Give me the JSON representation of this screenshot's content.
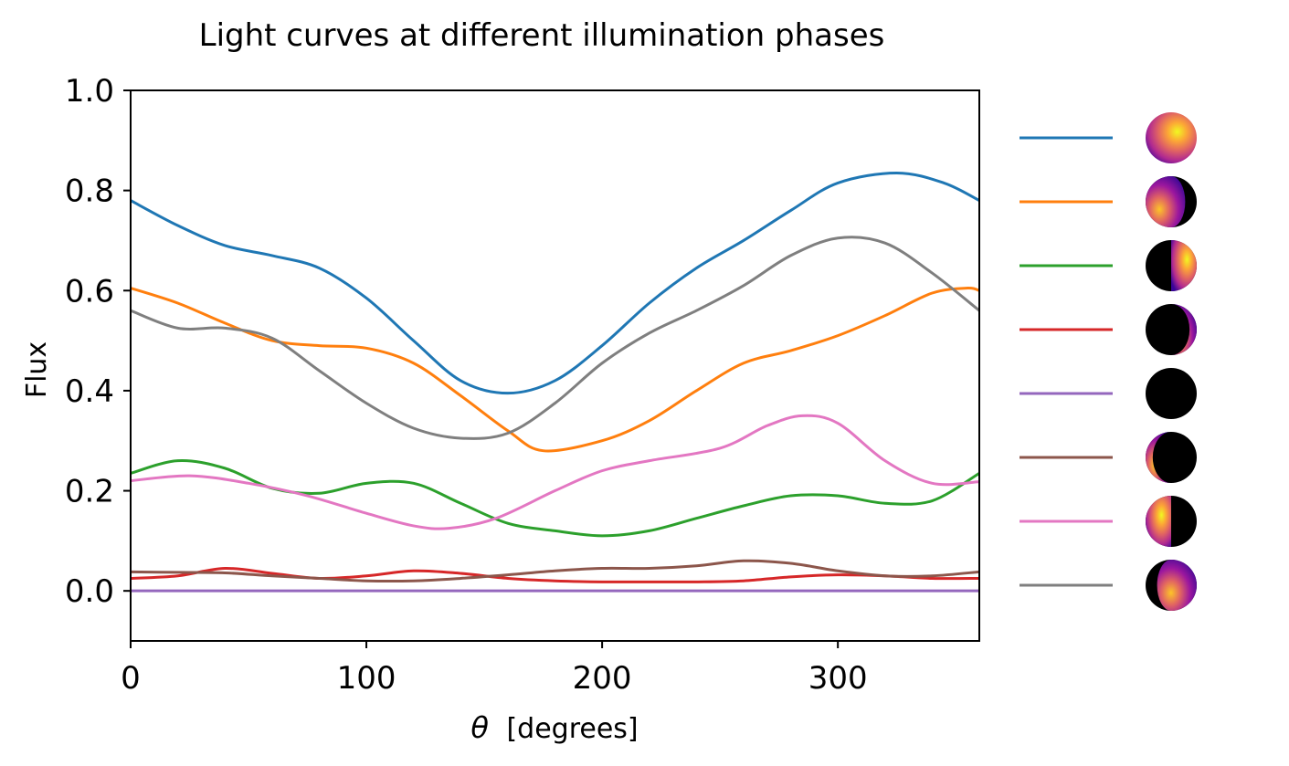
{
  "chart_data": {
    "type": "line",
    "title": "Light curves at different illumination phases",
    "xlabel_symbol": "θ",
    "xlabel_unit": "[degrees]",
    "ylabel": "Flux",
    "xlim": [
      0,
      360
    ],
    "ylim": [
      -0.1,
      1.0
    ],
    "xticks": [
      0,
      100,
      200,
      300
    ],
    "xtick_labels": [
      "0",
      "100",
      "200",
      "300"
    ],
    "yticks": [
      0.0,
      0.2,
      0.4,
      0.6,
      0.8,
      1.0
    ],
    "ytick_labels": [
      "0.0",
      "0.2",
      "0.4",
      "0.6",
      "0.8",
      "1.0"
    ],
    "grid": false,
    "legend_position": "right, outside plot",
    "colormap": "plasma",
    "series": [
      {
        "color": "#1f77b4",
        "phase_icon": "fully-lit-disk-icon",
        "x": [
          0,
          20,
          40,
          60,
          80,
          100,
          120,
          140,
          160,
          180,
          200,
          220,
          240,
          260,
          280,
          300,
          325,
          345,
          360
        ],
        "y": [
          0.78,
          0.73,
          0.69,
          0.67,
          0.645,
          0.585,
          0.5,
          0.42,
          0.395,
          0.42,
          0.49,
          0.575,
          0.645,
          0.7,
          0.76,
          0.815,
          0.835,
          0.815,
          0.78
        ]
      },
      {
        "color": "#ff7f0e",
        "phase_icon": "gibbous-lit-left-icon",
        "x": [
          0,
          20,
          40,
          60,
          80,
          100,
          120,
          140,
          160,
          175,
          200,
          220,
          240,
          260,
          280,
          300,
          320,
          340,
          355,
          360
        ],
        "y": [
          0.605,
          0.575,
          0.535,
          0.5,
          0.49,
          0.485,
          0.455,
          0.39,
          0.32,
          0.28,
          0.3,
          0.34,
          0.4,
          0.455,
          0.48,
          0.51,
          0.55,
          0.595,
          0.605,
          0.6
        ]
      },
      {
        "color": "#2ca02c",
        "phase_icon": "half-lit-right-icon",
        "x": [
          0,
          20,
          40,
          60,
          80,
          100,
          120,
          140,
          160,
          180,
          200,
          220,
          240,
          260,
          280,
          300,
          320,
          340,
          360
        ],
        "y": [
          0.235,
          0.26,
          0.245,
          0.205,
          0.195,
          0.215,
          0.215,
          0.175,
          0.135,
          0.12,
          0.11,
          0.12,
          0.145,
          0.17,
          0.19,
          0.19,
          0.175,
          0.18,
          0.235
        ]
      },
      {
        "color": "#d62728",
        "phase_icon": "crescent-lit-right-icon",
        "x": [
          0,
          20,
          40,
          60,
          80,
          100,
          120,
          140,
          160,
          180,
          200,
          220,
          240,
          260,
          280,
          300,
          320,
          340,
          360
        ],
        "y": [
          0.025,
          0.03,
          0.045,
          0.035,
          0.025,
          0.03,
          0.04,
          0.035,
          0.025,
          0.02,
          0.018,
          0.018,
          0.018,
          0.02,
          0.028,
          0.032,
          0.03,
          0.025,
          0.025
        ]
      },
      {
        "color": "#9467bd",
        "phase_icon": "dark-disk-icon",
        "x": [
          0,
          360
        ],
        "y": [
          0.0,
          0.0
        ]
      },
      {
        "color": "#8c564b",
        "phase_icon": "crescent-lit-left-icon",
        "x": [
          0,
          20,
          40,
          60,
          80,
          100,
          120,
          140,
          160,
          180,
          200,
          220,
          240,
          260,
          280,
          300,
          320,
          340,
          360
        ],
        "y": [
          0.038,
          0.037,
          0.036,
          0.03,
          0.025,
          0.02,
          0.02,
          0.025,
          0.032,
          0.04,
          0.045,
          0.045,
          0.05,
          0.06,
          0.055,
          0.04,
          0.03,
          0.03,
          0.038
        ]
      },
      {
        "color": "#e377c2",
        "phase_icon": "half-lit-left-icon",
        "x": [
          0,
          25,
          50,
          75,
          100,
          120,
          135,
          155,
          180,
          200,
          220,
          250,
          270,
          285,
          300,
          320,
          340,
          360
        ],
        "y": [
          0.22,
          0.23,
          0.215,
          0.19,
          0.155,
          0.13,
          0.125,
          0.145,
          0.2,
          0.24,
          0.26,
          0.285,
          0.33,
          0.35,
          0.335,
          0.26,
          0.215,
          0.218
        ]
      },
      {
        "color": "#7f7f7f",
        "phase_icon": "gibbous-lit-right-icon",
        "x": [
          0,
          20,
          40,
          60,
          80,
          100,
          120,
          140,
          160,
          180,
          200,
          220,
          240,
          260,
          280,
          300,
          320,
          340,
          360
        ],
        "y": [
          0.56,
          0.525,
          0.525,
          0.505,
          0.44,
          0.375,
          0.325,
          0.305,
          0.315,
          0.375,
          0.455,
          0.515,
          0.56,
          0.61,
          0.67,
          0.705,
          0.695,
          0.635,
          0.56
        ]
      }
    ]
  }
}
